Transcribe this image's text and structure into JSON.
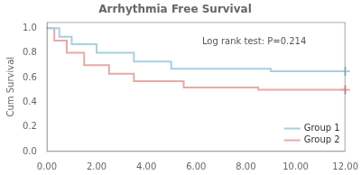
{
  "chart_data": {
    "type": "line",
    "title": "Arrhythmia Free Survival",
    "ylabel": "Cum Survival",
    "xlim": [
      0,
      12
    ],
    "ylim": [
      0,
      1.05
    ],
    "xticks": [
      {
        "value": 0,
        "label": "0.00"
      },
      {
        "value": 2,
        "label": "2.00"
      },
      {
        "value": 4,
        "label": "4.00"
      },
      {
        "value": 6,
        "label": "6.00"
      },
      {
        "value": 8,
        "label": "8.00"
      },
      {
        "value": 10,
        "label": "10.00"
      },
      {
        "value": 12,
        "label": "12.00"
      }
    ],
    "yticks": [
      {
        "value": 0.0,
        "label": "0.0"
      },
      0.2,
      0.4,
      0.6,
      0.8,
      {
        "value": 1.0,
        "label": "1.0"
      }
    ],
    "series": [
      {
        "name": "Group 1",
        "color": "#a8cfe0",
        "line_style": "step",
        "marker": "plus",
        "x": [
          0,
          0.5,
          1.0,
          2.0,
          3.5,
          5.0,
          9.0,
          12.0
        ],
        "values": [
          1.0,
          0.93,
          0.87,
          0.8,
          0.73,
          0.67,
          0.65,
          0.65
        ]
      },
      {
        "name": "Group 2",
        "color": "#e8a8a8",
        "line_style": "step",
        "marker": "plus",
        "x": [
          0,
          0.3,
          0.8,
          1.5,
          2.5,
          3.5,
          5.5,
          8.5,
          12.0
        ],
        "values": [
          1.0,
          0.9,
          0.8,
          0.7,
          0.63,
          0.57,
          0.52,
          0.5,
          0.5
        ]
      }
    ],
    "annotations": [
      "Log rank test: P=0.214"
    ],
    "legend": "lower right",
    "grid": false
  }
}
